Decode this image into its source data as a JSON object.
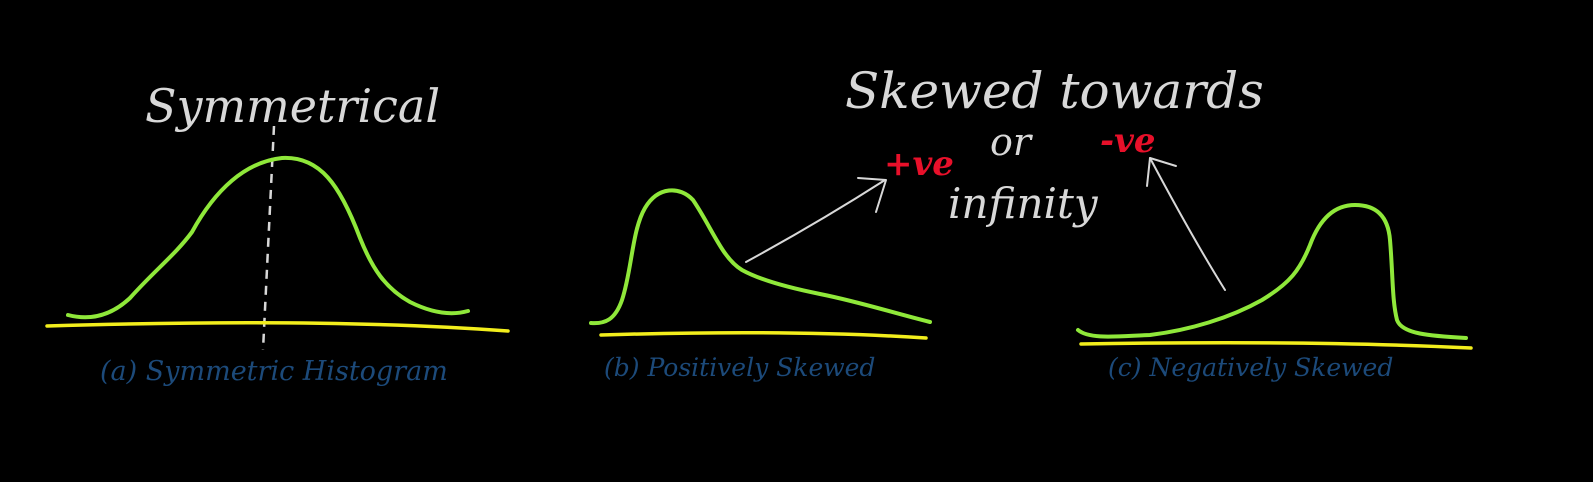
{
  "colors": {
    "background": "#000000",
    "curve": "#8fe83a",
    "axis": "#f2ee1c",
    "annotation": "#d8d8d8",
    "caption": "#1c4a7a",
    "sign": "#e8102a"
  },
  "panels": [
    {
      "title": "Symmetrical",
      "caption": "(a) Symmetric Histogram"
    },
    {
      "caption": "(b) Positively Skewed"
    },
    {
      "caption": "(c) Negatively Skewed"
    }
  ],
  "middle_note": {
    "line1": "Skewed towards",
    "plus_sign": "+ve",
    "or": "or",
    "minus_sign": "-ve",
    "line3": "infinity"
  }
}
